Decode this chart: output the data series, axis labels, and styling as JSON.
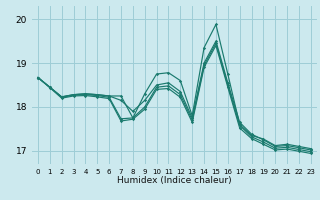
{
  "xlabel": "Humidex (Indice chaleur)",
  "bg_color": "#cce9ee",
  "grid_color": "#9ecdd6",
  "line_color": "#1a7a6e",
  "xlim": [
    -0.5,
    23.5
  ],
  "ylim": [
    16.7,
    20.3
  ],
  "yticks": [
    17,
    18,
    19,
    20
  ],
  "xticks": [
    0,
    1,
    2,
    3,
    4,
    5,
    6,
    7,
    8,
    9,
    10,
    11,
    12,
    13,
    14,
    15,
    16,
    17,
    18,
    19,
    20,
    21,
    22,
    23
  ],
  "series": [
    [
      18.67,
      18.45,
      18.23,
      18.28,
      18.3,
      18.28,
      18.25,
      18.25,
      17.75,
      18.3,
      18.75,
      18.78,
      18.6,
      17.8,
      19.35,
      19.88,
      18.75,
      17.6,
      17.35,
      17.27,
      17.12,
      17.15,
      17.1,
      17.05
    ],
    [
      18.67,
      18.45,
      18.23,
      18.28,
      18.3,
      18.28,
      18.25,
      18.15,
      17.9,
      18.15,
      18.5,
      18.55,
      18.35,
      17.75,
      19.0,
      19.5,
      18.55,
      17.65,
      17.38,
      17.25,
      17.1,
      17.12,
      17.07,
      17.02
    ],
    [
      18.67,
      18.45,
      18.22,
      18.27,
      18.28,
      18.26,
      18.22,
      17.73,
      17.75,
      18.0,
      18.45,
      18.48,
      18.28,
      17.7,
      18.95,
      19.45,
      18.5,
      17.58,
      17.32,
      17.2,
      17.06,
      17.08,
      17.03,
      16.98
    ],
    [
      18.67,
      18.44,
      18.2,
      18.25,
      18.26,
      18.23,
      18.19,
      17.68,
      17.72,
      17.95,
      18.4,
      18.42,
      18.22,
      17.65,
      18.9,
      19.4,
      18.45,
      17.52,
      17.28,
      17.15,
      17.02,
      17.04,
      16.99,
      16.94
    ]
  ]
}
